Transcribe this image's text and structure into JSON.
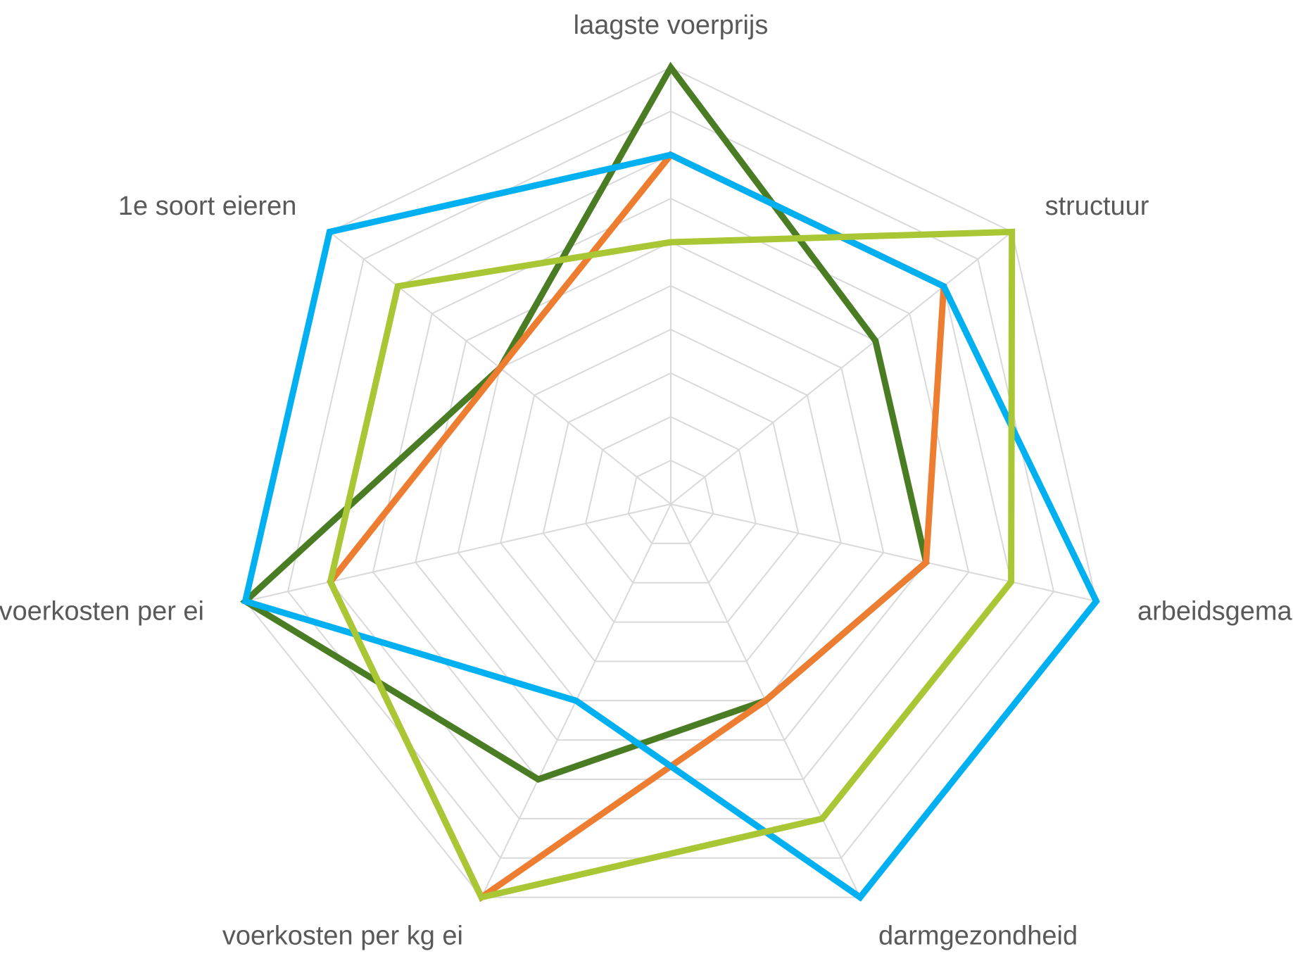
{
  "chart_data": {
    "type": "radar",
    "title": "",
    "axes": [
      "laagste voerprijs",
      "structuur",
      "arbeidsgemak",
      "darmgezondheid",
      "voerkosten per kg ei",
      "voerkosten per ei",
      "1e soort eieren"
    ],
    "range": [
      0,
      10
    ],
    "gridlines": 10,
    "legend": "none",
    "series": [
      {
        "color": "#4a7c23",
        "values": [
          10,
          6,
          6,
          5,
          7,
          10,
          5
        ]
      },
      {
        "color": "#ed7d31",
        "values": [
          8,
          8,
          6,
          5,
          10,
          8,
          5
        ]
      },
      {
        "color": "#00b0f0",
        "values": [
          8,
          8,
          10,
          10,
          5,
          10,
          10
        ]
      },
      {
        "color": "#a9c634",
        "values": [
          6,
          10,
          8,
          8,
          10,
          8,
          8
        ]
      }
    ]
  }
}
